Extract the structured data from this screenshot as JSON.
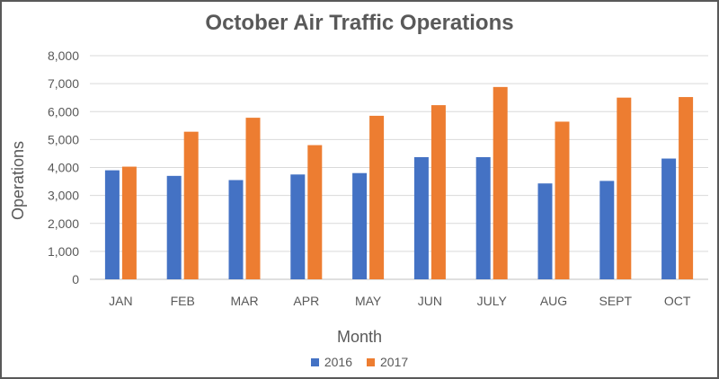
{
  "chart_data": {
    "type": "bar",
    "title": "October Air Traffic Operations",
    "xlabel": "Month",
    "ylabel": "Operations",
    "categories": [
      "JAN",
      "FEB",
      "MAR",
      "APR",
      "MAY",
      "JUN",
      "JULY",
      "AUG",
      "SEPT",
      "OCT"
    ],
    "series": [
      {
        "name": "2016",
        "color": "#4472C4",
        "values": [
          3900,
          3700,
          3550,
          3750,
          3800,
          4370,
          4370,
          3430,
          3520,
          4320
        ]
      },
      {
        "name": "2017",
        "color": "#ED7D31",
        "values": [
          4030,
          5280,
          5780,
          4800,
          5850,
          6230,
          6880,
          5640,
          6500,
          6520
        ]
      }
    ],
    "ylim": [
      0,
      8000
    ],
    "yticks": [
      0,
      1000,
      2000,
      3000,
      4000,
      5000,
      6000,
      7000,
      8000
    ],
    "ytick_labels": [
      "0",
      "1,000",
      "2,000",
      "3,000",
      "4,000",
      "5,000",
      "6,000",
      "7,000",
      "8,000"
    ],
    "grid": true,
    "legend_position": "bottom"
  }
}
